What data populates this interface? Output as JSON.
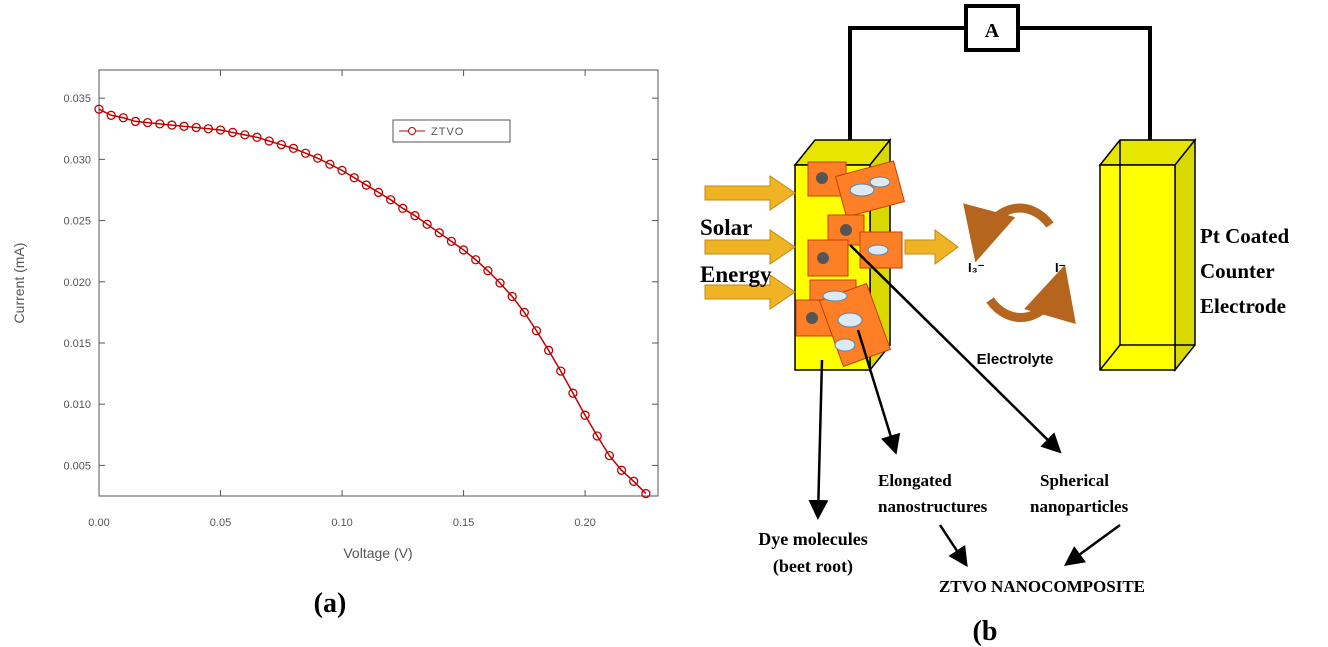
{
  "chart_data": {
    "type": "line",
    "x_label": "Voltage (V)",
    "y_label": "Current (mA)",
    "x": [
      0,
      0.005,
      0.01,
      0.015,
      0.02,
      0.025,
      0.03,
      0.035,
      0.04,
      0.045,
      0.05,
      0.055,
      0.06,
      0.065,
      0.07,
      0.075,
      0.08,
      0.085,
      0.09,
      0.095,
      0.1,
      0.105,
      0.11,
      0.115,
      0.12,
      0.125,
      0.13,
      0.135,
      0.14,
      0.145,
      0.15,
      0.155,
      0.16,
      0.165,
      0.17,
      0.175,
      0.18,
      0.185,
      0.19,
      0.195,
      0.2,
      0.205,
      0.21,
      0.215,
      0.22,
      0.225
    ],
    "series": [
      {
        "name": "ZTVO",
        "color": "#c00000",
        "values": [
          0.0341,
          0.0336,
          0.0334,
          0.0331,
          0.033,
          0.0329,
          0.0328,
          0.0327,
          0.0326,
          0.0325,
          0.0324,
          0.0322,
          0.032,
          0.0318,
          0.0315,
          0.0312,
          0.0309,
          0.0305,
          0.0301,
          0.0296,
          0.0291,
          0.0285,
          0.0279,
          0.0273,
          0.0267,
          0.026,
          0.0254,
          0.0247,
          0.024,
          0.0233,
          0.0226,
          0.0218,
          0.0209,
          0.0199,
          0.0188,
          0.0175,
          0.016,
          0.0144,
          0.0127,
          0.0109,
          0.0091,
          0.0074,
          0.0058,
          0.0046,
          0.0037,
          0.0027
        ]
      }
    ],
    "xlim": [
      0,
      0.23
    ],
    "ylim": [
      0.0025,
      0.0373
    ],
    "xticks": [
      {
        "value": 0,
        "label": "0.00"
      },
      0.05,
      {
        "value": 0.1,
        "label": "0.10"
      },
      0.15,
      {
        "value": 0.2,
        "label": "0.20"
      }
    ],
    "yticks": [
      0.005,
      {
        "value": 0.01,
        "label": "0.010"
      },
      0.015,
      {
        "value": 0.02,
        "label": "0.020"
      },
      0.025,
      {
        "value": 0.03,
        "label": "0.030"
      },
      0.035
    ],
    "legend": "top-right",
    "grid": false
  },
  "panels": {
    "a": "(a)",
    "b": "(b"
  },
  "diagram": {
    "ammeter": "A",
    "solar": "Solar",
    "energy": "Energy",
    "counter": [
      "Pt Coated",
      "Counter",
      "Electrode"
    ],
    "electrolyte": "Electrolyte",
    "triiodide": "I₃⁻",
    "iodide": "I⁻",
    "dye": [
      "Dye molecules",
      "(beet root)"
    ],
    "elongated": [
      "Elongated",
      "nanostructures"
    ],
    "spherical": [
      "Spherical",
      "nanoparticles"
    ],
    "product": "ZTVO NANOCOMPOSITE"
  }
}
